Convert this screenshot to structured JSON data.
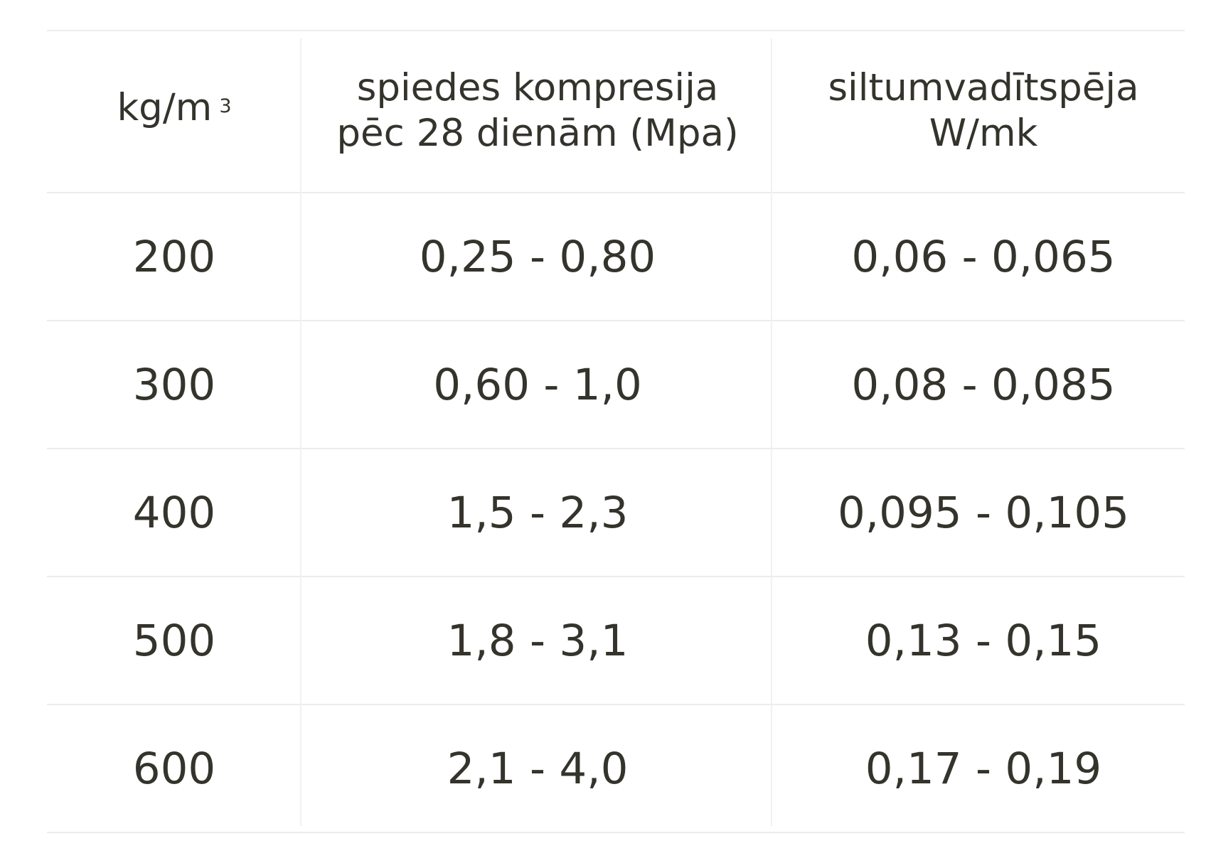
{
  "table": {
    "headers": [
      {
        "main": "kg/m",
        "sup": "3"
      },
      {
        "line1": "spiedes kompresija",
        "line2": "pēc 28 dienām (Mpa)"
      },
      {
        "line1": "siltumvadītspēja",
        "line2": "W/mk"
      }
    ],
    "rows": [
      [
        "200",
        "0,25 - 0,80",
        "0,06 - 0,065"
      ],
      [
        "300",
        "0,60 - 1,0",
        "0,08 - 0,085"
      ],
      [
        "400",
        "1,5 - 2,3",
        "0,095 - 0,105"
      ],
      [
        "500",
        "1,8 - 3,1",
        "0,13 - 0,15"
      ],
      [
        "600",
        "2,1 - 4,0",
        "0,17 - 0,19"
      ]
    ]
  }
}
